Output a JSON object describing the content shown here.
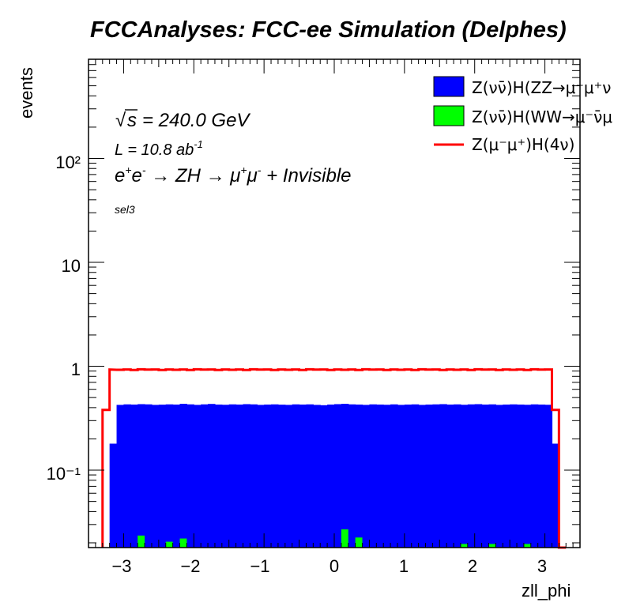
{
  "title": "FCCAnalyses: FCC-ee Simulation (Delphes)",
  "annotations": {
    "sqrt_s": "= 240.0 GeV",
    "lumi_prefix": "L = 10.8 ab",
    "lumi_exp": "-1",
    "selection": "sel3"
  },
  "legend": [
    {
      "label": "Z(νν̄)H(ZZ→μ⁻μ⁺ν",
      "color": "#0000ff",
      "style": "fill"
    },
    {
      "label": "Z(νν̄)H(WW→μ⁻ν̄μ",
      "color": "#00ff00",
      "style": "fill"
    },
    {
      "label": "Z(μ⁻μ⁺)H(4ν)",
      "color": "#ff0000",
      "style": "line"
    }
  ],
  "chart_data": {
    "type": "histogram",
    "xlabel": "zll_phi",
    "ylabel": "events",
    "x_range": [
      -3.5,
      3.5
    ],
    "y_range": [
      0.018,
      900
    ],
    "y_scale": "log",
    "bin_width": 0.1,
    "x_ticks": [
      "−3",
      "−2",
      "−1",
      "0",
      "1",
      "2",
      "3"
    ],
    "y_ticks": [
      "10⁻¹",
      "1",
      "10",
      "10²"
    ],
    "series": [
      {
        "name": "Z(νν̄)H(ZZ→μ⁻μ⁺ν",
        "style": "stacked-fill",
        "color": "#0000ff",
        "bins": [
          [
            -3.2,
            0.18
          ],
          [
            -3.1,
            0.425
          ],
          [
            -3.0,
            0.43
          ],
          [
            -2.9,
            0.428
          ],
          [
            -2.8,
            0.432
          ],
          [
            -2.7,
            0.43
          ],
          [
            -2.6,
            0.425
          ],
          [
            -2.5,
            0.427
          ],
          [
            -2.4,
            0.43
          ],
          [
            -2.3,
            0.428
          ],
          [
            -2.2,
            0.435
          ],
          [
            -2.1,
            0.43
          ],
          [
            -2.0,
            0.425
          ],
          [
            -1.9,
            0.43
          ],
          [
            -1.8,
            0.434
          ],
          [
            -1.7,
            0.428
          ],
          [
            -1.6,
            0.426
          ],
          [
            -1.5,
            0.43
          ],
          [
            -1.4,
            0.428
          ],
          [
            -1.3,
            0.432
          ],
          [
            -1.2,
            0.43
          ],
          [
            -1.1,
            0.425
          ],
          [
            -1.0,
            0.428
          ],
          [
            -0.9,
            0.43
          ],
          [
            -0.8,
            0.427
          ],
          [
            -0.7,
            0.425
          ],
          [
            -0.6,
            0.43
          ],
          [
            -0.5,
            0.428
          ],
          [
            -0.4,
            0.43
          ],
          [
            -0.3,
            0.425
          ],
          [
            -0.2,
            0.422
          ],
          [
            -0.1,
            0.428
          ],
          [
            0.0,
            0.432
          ],
          [
            0.1,
            0.435
          ],
          [
            0.2,
            0.43
          ],
          [
            0.3,
            0.428
          ],
          [
            0.4,
            0.425
          ],
          [
            0.5,
            0.43
          ],
          [
            0.6,
            0.428
          ],
          [
            0.7,
            0.426
          ],
          [
            0.8,
            0.43
          ],
          [
            0.9,
            0.425
          ],
          [
            1.0,
            0.428
          ],
          [
            1.1,
            0.43
          ],
          [
            1.2,
            0.425
          ],
          [
            1.3,
            0.428
          ],
          [
            1.4,
            0.43
          ],
          [
            1.5,
            0.432
          ],
          [
            1.6,
            0.428
          ],
          [
            1.7,
            0.43
          ],
          [
            1.8,
            0.426
          ],
          [
            1.9,
            0.43
          ],
          [
            2.0,
            0.432
          ],
          [
            2.1,
            0.428
          ],
          [
            2.2,
            0.43
          ],
          [
            2.3,
            0.425
          ],
          [
            2.4,
            0.428
          ],
          [
            2.5,
            0.43
          ],
          [
            2.6,
            0.428
          ],
          [
            2.7,
            0.426
          ],
          [
            2.8,
            0.43
          ],
          [
            2.9,
            0.428
          ],
          [
            3.0,
            0.426
          ],
          [
            3.1,
            0.18
          ]
        ]
      },
      {
        "name": "Z(νν̄)H(WW→μ⁻ν̄μ",
        "style": "fill-spikes",
        "color": "#00ff00",
        "bins": [
          [
            -2.8,
            0.0235
          ],
          [
            -2.4,
            0.0205
          ],
          [
            -2.2,
            0.022
          ],
          [
            0.1,
            0.027
          ],
          [
            0.3,
            0.0225
          ],
          [
            1.8,
            0.0195
          ],
          [
            2.2,
            0.0195
          ],
          [
            2.7,
            0.0195
          ]
        ]
      },
      {
        "name": "Z(μ⁻μ⁺)H(4ν)",
        "style": "step-line",
        "color": "#ff0000",
        "edges_level": [
          [
            -3.3,
            0.018
          ],
          [
            -3.2,
            0.38
          ],
          [
            -3.1,
            0.93
          ],
          [
            3.1,
            0.93
          ],
          [
            3.2,
            0.38
          ],
          [
            3.3,
            0.018
          ]
        ],
        "plateau_wiggle": [
          0.925,
          0.93,
          0.92,
          0.935,
          0.928,
          0.93,
          0.92,
          0.93
        ]
      }
    ]
  }
}
